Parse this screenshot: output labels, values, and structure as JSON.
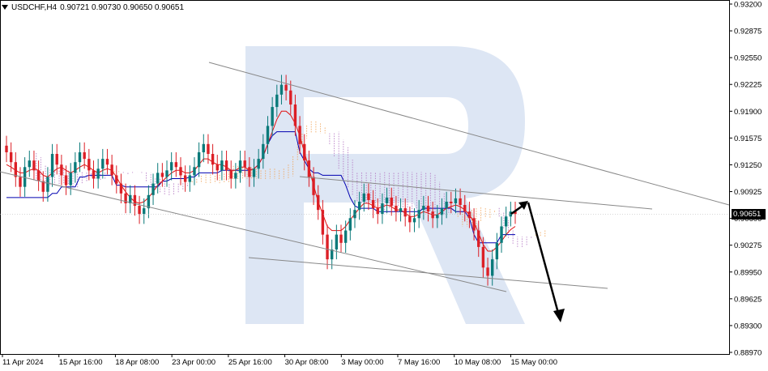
{
  "header": {
    "symbol": "USDCHF,H4",
    "ohlc": "0.90721 0.90730 0.90650 0.90651"
  },
  "watermark": "R",
  "current_price": "0.90651",
  "colors": {
    "bull": "#0a7a7a",
    "bear": "#dc1f26",
    "tenkan": "#e01010",
    "kijun": "#0000b0",
    "cloud": "#f0a050",
    "cloud_bear": "#b070c0",
    "trend": "#888888",
    "arrow": "#000000",
    "watermark": "#dde6f4"
  },
  "chart_data": {
    "type": "candlestick",
    "ylim": [
      0.8897,
      0.932
    ],
    "y_ticks": [
      "0.93200",
      "0.92875",
      "0.92550",
      "0.92225",
      "0.91900",
      "0.91575",
      "0.91250",
      "0.90925",
      "0.90600",
      "0.90275",
      "0.89950",
      "0.89625",
      "0.89300",
      "0.88970"
    ],
    "x_ticks": [
      "11 Apr 2024",
      "15 Apr 16:00",
      "18 Apr 08:00",
      "23 Apr 00:00",
      "25 Apr 16:00",
      "30 Apr 08:00",
      "3 May 00:00",
      "7 May 16:00",
      "10 May 08:00",
      "15 May 00:00"
    ],
    "ohlc_close": [
      0.914,
      0.9128,
      0.911,
      0.9098,
      0.9122,
      0.913,
      0.9118,
      0.9105,
      0.9092,
      0.911,
      0.9138,
      0.9125,
      0.9112,
      0.91,
      0.9115,
      0.9128,
      0.914,
      0.9132,
      0.9118,
      0.9108,
      0.912,
      0.9132,
      0.9125,
      0.9112,
      0.9102,
      0.909,
      0.9078,
      0.9088,
      0.9075,
      0.9065,
      0.9072,
      0.9088,
      0.9102,
      0.9115,
      0.911,
      0.9118,
      0.9128,
      0.9122,
      0.9112,
      0.9104,
      0.9112,
      0.9122,
      0.914,
      0.915,
      0.9138,
      0.9125,
      0.9118,
      0.913,
      0.9118,
      0.9108,
      0.9115,
      0.913,
      0.9122,
      0.911,
      0.912,
      0.9132,
      0.915,
      0.9172,
      0.9195,
      0.921,
      0.9222,
      0.9215,
      0.9198,
      0.9172,
      0.915,
      0.913,
      0.911,
      0.9088,
      0.907,
      0.904,
      0.901,
      0.9022,
      0.904,
      0.903,
      0.9045,
      0.906,
      0.907,
      0.908,
      0.909,
      0.9082,
      0.9072,
      0.9065,
      0.9078,
      0.9085,
      0.9075,
      0.9068,
      0.9072,
      0.9062,
      0.9055,
      0.906,
      0.907,
      0.9075,
      0.9068,
      0.906,
      0.9064,
      0.9072,
      0.908,
      0.9078,
      0.9084,
      0.9076,
      0.9068,
      0.906,
      0.9045,
      0.9025,
      0.9,
      0.899,
      0.901,
      0.903,
      0.905,
      0.9062,
      0.9068,
      0.9065
    ],
    "tenkan": [
      0.9125,
      0.9122,
      0.9118,
      0.9115,
      0.9115,
      0.9118,
      0.912,
      0.9118,
      0.9112,
      0.911,
      0.9115,
      0.912,
      0.9122,
      0.9118,
      0.9115,
      0.9118,
      0.9122,
      0.9125,
      0.9122,
      0.9118,
      0.9115,
      0.9118,
      0.912,
      0.9118,
      0.911,
      0.91,
      0.9092,
      0.9085,
      0.908,
      0.9078,
      0.908,
      0.9085,
      0.9092,
      0.91,
      0.9105,
      0.911,
      0.9115,
      0.9118,
      0.9118,
      0.9115,
      0.9115,
      0.9118,
      0.9125,
      0.9132,
      0.9132,
      0.9128,
      0.9125,
      0.9125,
      0.9122,
      0.9118,
      0.9118,
      0.9122,
      0.9122,
      0.9118,
      0.912,
      0.9125,
      0.9135,
      0.915,
      0.9165,
      0.918,
      0.919,
      0.919,
      0.9185,
      0.9175,
      0.916,
      0.914,
      0.912,
      0.91,
      0.908,
      0.9065,
      0.905,
      0.9045,
      0.9045,
      0.9045,
      0.905,
      0.9058,
      0.9065,
      0.9072,
      0.9078,
      0.9078,
      0.9075,
      0.9072,
      0.9074,
      0.9076,
      0.9074,
      0.907,
      0.907,
      0.9066,
      0.9062,
      0.9062,
      0.9065,
      0.9068,
      0.9066,
      0.9064,
      0.9064,
      0.9068,
      0.9072,
      0.9074,
      0.9076,
      0.9074,
      0.907,
      0.9064,
      0.9055,
      0.9042,
      0.9028,
      0.902,
      0.902,
      0.9025,
      0.9032,
      0.904,
      0.9046,
      0.905
    ],
    "kijun": [
      0.9085,
      0.9085,
      0.9085,
      0.9085,
      0.9085,
      0.9085,
      0.9085,
      0.9085,
      0.9085,
      0.9085,
      0.909,
      0.909,
      0.9098,
      0.9098,
      0.9098,
      0.9098,
      0.911,
      0.911,
      0.9112,
      0.9112,
      0.9112,
      0.9112,
      0.9112,
      0.9112,
      0.91,
      0.91,
      0.9098,
      0.9098,
      0.9098,
      0.9098,
      0.9098,
      0.9098,
      0.9098,
      0.9098,
      0.9105,
      0.9105,
      0.9108,
      0.9108,
      0.9108,
      0.9108,
      0.911,
      0.911,
      0.9115,
      0.9115,
      0.9115,
      0.9115,
      0.9115,
      0.9118,
      0.9118,
      0.9118,
      0.9118,
      0.9118,
      0.9118,
      0.9118,
      0.912,
      0.9125,
      0.9135,
      0.915,
      0.916,
      0.9165,
      0.9165,
      0.9165,
      0.9165,
      0.9165,
      0.914,
      0.913,
      0.912,
      0.9115,
      0.9115,
      0.9112,
      0.9112,
      0.9112,
      0.9112,
      0.9112,
      0.91,
      0.9085,
      0.9075,
      0.9072,
      0.9072,
      0.9072,
      0.9072,
      0.9068,
      0.9068,
      0.9068,
      0.9068,
      0.9068,
      0.9068,
      0.9068,
      0.9068,
      0.9068,
      0.9068,
      0.9072,
      0.9072,
      0.9072,
      0.9072,
      0.9072,
      0.9072,
      0.9072,
      0.9068,
      0.9068,
      0.9068,
      0.906,
      0.904,
      0.903,
      0.903,
      0.903,
      0.903,
      0.903,
      0.904,
      0.904,
      0.904,
      0.904
    ]
  }
}
